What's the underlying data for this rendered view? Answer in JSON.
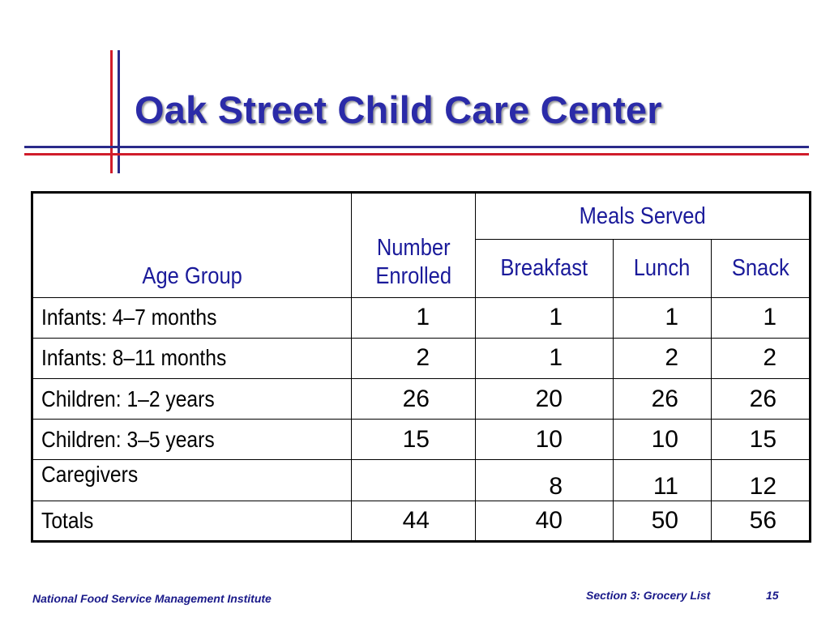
{
  "title": "Oak Street Child Care Center",
  "colors": {
    "title_blue": "#2b2ba8",
    "header_blue": "#1a1a9a",
    "rule_red": "#d01c2a",
    "rule_navy": "#2a2a8a"
  },
  "table": {
    "headers": {
      "age_group": "Age Group",
      "number_line1": "Number",
      "number_line2": "Enrolled",
      "meals_served": "Meals Served",
      "breakfast": "Breakfast",
      "lunch": "Lunch",
      "snack": "Snack"
    },
    "rows": [
      {
        "label": "Infants: 4–7 months",
        "enrolled": "1",
        "breakfast": "1",
        "lunch": "1",
        "snack": "1"
      },
      {
        "label": "Infants: 8–11 months",
        "enrolled": "2",
        "breakfast": "1",
        "lunch": "2",
        "snack": "2"
      },
      {
        "label": "Children: 1–2 years",
        "enrolled": "26",
        "breakfast": "20",
        "lunch": "26",
        "snack": "26"
      },
      {
        "label": "Children: 3–5 years",
        "enrolled": "15",
        "breakfast": "10",
        "lunch": "10",
        "snack": "15"
      },
      {
        "label": "Caregivers",
        "enrolled": "",
        "breakfast": "8",
        "lunch": "11",
        "snack": "12"
      },
      {
        "label": "Totals",
        "enrolled": "44",
        "breakfast": "40",
        "lunch": "50",
        "snack": "56"
      }
    ]
  },
  "footer": {
    "institute": "National Food Service Management Institute",
    "section": "Section 3: Grocery List",
    "page": "15"
  }
}
